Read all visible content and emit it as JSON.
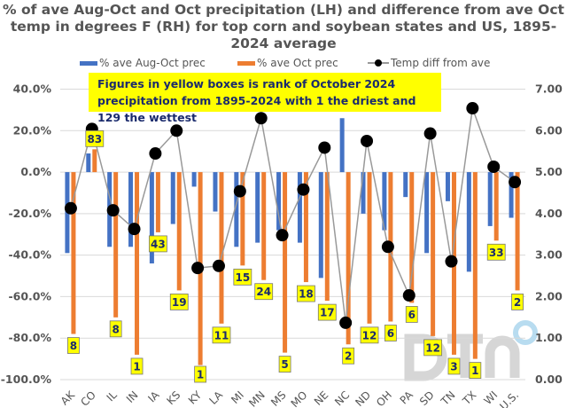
{
  "chart_data": {
    "type": "bar",
    "title": "% of ave Aug-Oct and Oct precipitation (LH) and difference from ave Oct temp in degrees F (RH) for top corn and soybean states and US, 1895-2024 average",
    "annotation": "Figures in yellow boxes is rank of October 2024 precipitation from 1895-2024 with 1 the driest and 129 the wettest",
    "categories": [
      "AK",
      "CO",
      "IL",
      "IN",
      "IA",
      "KS",
      "KY",
      "LA",
      "MI",
      "MN",
      "MS",
      "MO",
      "NE",
      "NC",
      "ND",
      "OH",
      "PA",
      "SD",
      "TN",
      "TX",
      "WI",
      "U.S."
    ],
    "series": [
      {
        "name": "% ave Aug-Oct prec",
        "type": "bar",
        "axis": "left",
        "color": "#4472c4",
        "values": [
          -39,
          9,
          -36,
          -36,
          -44,
          -25,
          -7,
          -19,
          -36,
          -34,
          -28,
          -34,
          -51,
          26,
          -20,
          -28,
          -12,
          -39,
          -14,
          -48,
          -26,
          -22
        ]
      },
      {
        "name": "% ave Oct prec",
        "type": "bar",
        "axis": "left",
        "color": "#ed7d31",
        "values": [
          -78,
          11,
          -70,
          -88,
          -29,
          -57,
          -93,
          -73,
          -45,
          -52,
          -87,
          -53,
          -62,
          -83,
          -73,
          -72,
          -63,
          -79,
          -88,
          -90,
          -33,
          -57
        ]
      },
      {
        "name": "Temp diff from ave",
        "type": "line",
        "axis": "right",
        "color": "#000000",
        "values": [
          4.13,
          6.04,
          4.08,
          3.63,
          5.45,
          6.0,
          2.69,
          2.74,
          4.54,
          6.3,
          3.48,
          4.58,
          5.59,
          1.37,
          5.75,
          3.2,
          2.03,
          5.93,
          2.85,
          6.54,
          5.13,
          4.76
        ]
      }
    ],
    "ranks": [
      "8",
      "83",
      "8",
      "1",
      "43",
      "19",
      "1",
      "11",
      "15",
      "24",
      "5",
      "18",
      "17",
      "2",
      "12",
      "6",
      "6",
      "12",
      "3",
      "1",
      "33",
      "2"
    ],
    "left_axis": {
      "range": [
        -100,
        40
      ],
      "ticks": [
        "40.0%",
        "20.0%",
        "0.0%",
        "-20.0%",
        "-40.0%",
        "-60.0%",
        "-80.0%",
        "-100.0%"
      ]
    },
    "right_axis": {
      "range": [
        0,
        7
      ],
      "ticks": [
        "7.00",
        "6.00",
        "5.00",
        "4.00",
        "3.00",
        "2.00",
        "1.00",
        "0.00"
      ]
    },
    "grid": true,
    "legend": "top",
    "watermark": "DTN"
  }
}
